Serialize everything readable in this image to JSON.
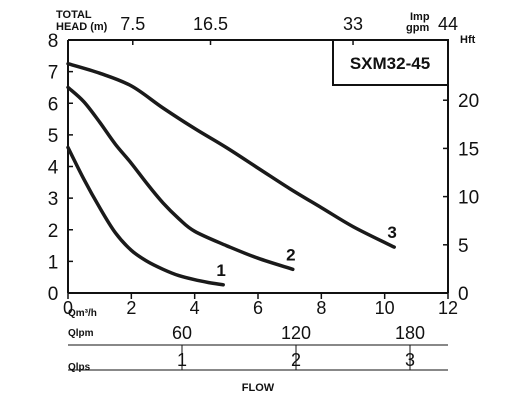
{
  "chart_data": {
    "type": "line",
    "title": "SXM32-45",
    "xlabel": "FLOW",
    "ylabel": "TOTAL HEAD (m)",
    "ylabel_line1": "TOTAL",
    "ylabel_line2": "HEAD (m)",
    "y2label": "Hft",
    "top_axis_label_line1": "Imp",
    "top_axis_label_line2": "gpm",
    "xlim": [
      0,
      12
    ],
    "ylim": [
      0,
      8
    ],
    "grid": false,
    "x_unit_label": "Qm³/h",
    "x_ticks": [
      "0",
      "2",
      "4",
      "6",
      "8",
      "10",
      "12"
    ],
    "y_ticks": [
      "0",
      "1",
      "2",
      "3",
      "4",
      "5",
      "6",
      "7",
      "8"
    ],
    "right_ticks": [
      {
        "label": "0",
        "value": 0
      },
      {
        "label": "5",
        "value": 5
      },
      {
        "label": "10",
        "value": 10
      },
      {
        "label": "15",
        "value": 15
      },
      {
        "label": "20",
        "value": 20
      }
    ],
    "top_ticks": [
      {
        "label": "7.5",
        "value": 7.5
      },
      {
        "label": "16.5",
        "value": 16.5
      },
      {
        "label": "33",
        "value": 33
      },
      {
        "label": "44",
        "value": 44
      }
    ],
    "secondary_axes": [
      {
        "label": "Qlpm",
        "ticks": [
          {
            "label": "60",
            "value": 60
          },
          {
            "label": "120",
            "value": 120
          },
          {
            "label": "180",
            "value": 180
          }
        ]
      },
      {
        "label": "Qlps",
        "ticks": [
          {
            "label": "1",
            "value": 1
          },
          {
            "label": "2",
            "value": 2
          },
          {
            "label": "3",
            "value": 3
          }
        ]
      }
    ],
    "series": [
      {
        "name": "1",
        "x": [
          0,
          0.5,
          1,
          1.5,
          2,
          2.5,
          3,
          3.5,
          4,
          4.5,
          4.9
        ],
        "y": [
          4.6,
          3.6,
          2.7,
          1.9,
          1.35,
          1.0,
          0.75,
          0.55,
          0.42,
          0.32,
          0.26
        ]
      },
      {
        "name": "2",
        "x": [
          0,
          0.5,
          1,
          1.5,
          2,
          2.5,
          3,
          3.5,
          4,
          5,
          6,
          7.1
        ],
        "y": [
          6.5,
          6.05,
          5.4,
          4.7,
          4.1,
          3.45,
          2.85,
          2.35,
          1.95,
          1.5,
          1.1,
          0.75
        ]
      },
      {
        "name": "3",
        "x": [
          0,
          1,
          2,
          3,
          4,
          5,
          6,
          7,
          8,
          9,
          10.3
        ],
        "y": [
          7.25,
          6.95,
          6.55,
          5.85,
          5.2,
          4.6,
          3.95,
          3.3,
          2.7,
          2.1,
          1.45
        ]
      }
    ]
  }
}
